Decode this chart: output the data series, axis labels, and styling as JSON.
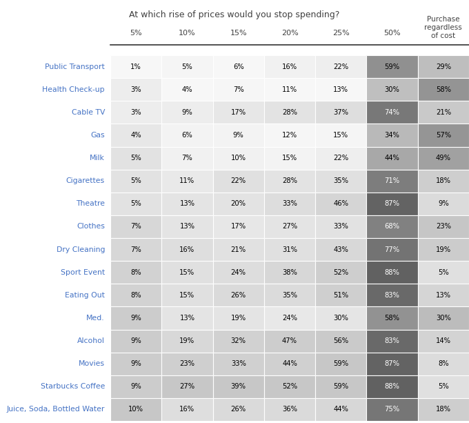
{
  "title": "At which rise of prices would you stop spending?",
  "col_headers": [
    "5%",
    "10%",
    "15%",
    "20%",
    "25%",
    "50%",
    "Purchase\nregardless\nof cost"
  ],
  "row_labels": [
    "Public Transport",
    "Health Check-up",
    "Cable TV",
    "Gas",
    "Milk",
    "Cigarettes",
    "Theatre",
    "Clothes",
    "Dry Cleaning",
    "Sport Event",
    "Eating Out",
    "Med.",
    "Alcohol",
    "Movies",
    "Starbucks Coffee",
    "Juice, Soda, Bottled Water"
  ],
  "values": [
    [
      1,
      5,
      6,
      16,
      22,
      59,
      29
    ],
    [
      3,
      4,
      7,
      11,
      13,
      30,
      58
    ],
    [
      3,
      9,
      17,
      28,
      37,
      74,
      21
    ],
    [
      4,
      6,
      9,
      12,
      15,
      34,
      57
    ],
    [
      5,
      7,
      10,
      15,
      22,
      44,
      49
    ],
    [
      5,
      11,
      22,
      28,
      35,
      71,
      18
    ],
    [
      5,
      13,
      20,
      33,
      46,
      87,
      9
    ],
    [
      7,
      13,
      17,
      27,
      33,
      68,
      23
    ],
    [
      7,
      16,
      21,
      31,
      43,
      77,
      19
    ],
    [
      8,
      15,
      24,
      38,
      52,
      88,
      5
    ],
    [
      8,
      15,
      26,
      35,
      51,
      83,
      13
    ],
    [
      9,
      13,
      19,
      24,
      30,
      58,
      30
    ],
    [
      9,
      19,
      32,
      47,
      56,
      83,
      14
    ],
    [
      9,
      23,
      33,
      44,
      59,
      87,
      8
    ],
    [
      9,
      27,
      39,
      52,
      59,
      88,
      5
    ],
    [
      10,
      16,
      26,
      36,
      44,
      75,
      18
    ]
  ],
  "col_min": [
    1,
    4,
    6,
    11,
    13,
    30,
    5
  ],
  "col_max": [
    10,
    27,
    39,
    52,
    59,
    88,
    58
  ],
  "bg_color": "#ffffff",
  "row_label_color": "#4472C4",
  "title_color": "#404040",
  "text_color_dark": "#000000",
  "text_color_light": "#ffffff",
  "col5_light": 0.75,
  "col5_dark": 0.38,
  "col6_light": 0.88,
  "col6_dark": 0.58,
  "cols04_light": 0.97,
  "cols04_dark": 0.78
}
